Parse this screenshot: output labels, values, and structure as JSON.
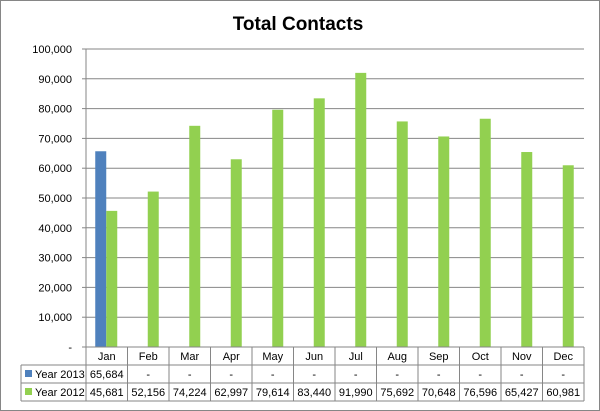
{
  "chart_data": {
    "type": "bar",
    "title": "Total Contacts",
    "categories": [
      "Jan",
      "Feb",
      "Mar",
      "Apr",
      "May",
      "Jun",
      "Jul",
      "Aug",
      "Sep",
      "Oct",
      "Nov",
      "Dec"
    ],
    "ylim": [
      0,
      100000
    ],
    "yticks": [
      {
        "value": 0,
        "label": "-"
      },
      {
        "value": 10000,
        "label": "10,000"
      },
      {
        "value": 20000,
        "label": "20,000"
      },
      {
        "value": 30000,
        "label": "30,000"
      },
      {
        "value": 40000,
        "label": "40,000"
      },
      {
        "value": 50000,
        "label": "50,000"
      },
      {
        "value": 60000,
        "label": "60,000"
      },
      {
        "value": 70000,
        "label": "70,000"
      },
      {
        "value": 80000,
        "label": "80,000"
      },
      {
        "value": 90000,
        "label": "90,000"
      },
      {
        "value": 100000,
        "label": "100,000"
      }
    ],
    "grid": true,
    "legend": "data-table",
    "series": [
      {
        "name": "Year 2013",
        "color": "#4f81bd",
        "values": [
          65684,
          null,
          null,
          null,
          null,
          null,
          null,
          null,
          null,
          null,
          null,
          null
        ],
        "labels": [
          "65,684",
          "-",
          "-",
          "-",
          "-",
          "-",
          "-",
          "-",
          "-",
          "-",
          "-",
          "-"
        ]
      },
      {
        "name": "Year 2012",
        "color": "#92d050",
        "values": [
          45681,
          52156,
          74224,
          62997,
          79614,
          83440,
          91990,
          75692,
          70648,
          76596,
          65427,
          60981
        ],
        "labels": [
          "45,681",
          "52,156",
          "74,224",
          "62,997",
          "79,614",
          "83,440",
          "91,990",
          "75,692",
          "70,648",
          "76,596",
          "65,427",
          "60,981"
        ]
      }
    ]
  }
}
